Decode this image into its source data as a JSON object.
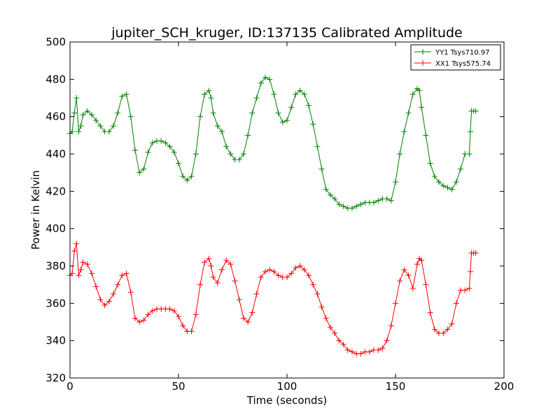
{
  "chart_data": {
    "type": "line",
    "title": "jupiter_SCH_kruger, ID:137135 Calibrated Amplitude",
    "xlabel": "Time (seconds)",
    "ylabel": "Power in Kelvin",
    "xlim": [
      0,
      200
    ],
    "ylim": [
      320,
      500
    ],
    "xticks": [
      0,
      50,
      100,
      150,
      200
    ],
    "yticks": [
      320,
      340,
      360,
      380,
      400,
      420,
      440,
      460,
      480,
      500
    ],
    "x_tick_labels": [
      "0",
      "50",
      "100",
      "150",
      "200"
    ],
    "y_tick_labels": [
      "320",
      "340",
      "360",
      "380",
      "400",
      "420",
      "440",
      "460",
      "480",
      "500"
    ],
    "grid": false,
    "legend_position": "top-right",
    "marker": "plus",
    "series": [
      {
        "name": "YY1 Tsys710.97",
        "color": "#008000",
        "x": [
          0,
          1,
          2,
          3,
          4,
          5,
          6,
          8,
          10,
          12,
          14,
          16,
          18,
          20,
          22,
          24,
          26,
          28,
          30,
          32,
          34,
          36,
          38,
          40,
          42,
          44,
          46,
          48,
          50,
          52,
          54,
          56,
          58,
          60,
          62,
          64,
          65,
          66,
          68,
          70,
          72,
          74,
          76,
          78,
          80,
          82,
          84,
          86,
          88,
          90,
          92,
          94,
          96,
          98,
          100,
          102,
          104,
          106,
          108,
          110,
          112,
          114,
          116,
          118,
          120,
          122,
          124,
          126,
          128,
          130,
          132,
          134,
          136,
          138,
          140,
          142,
          144,
          146,
          148,
          150,
          152,
          154,
          156,
          158,
          160,
          161,
          162,
          164,
          166,
          168,
          170,
          172,
          174,
          176,
          178,
          180,
          182,
          184,
          184.5,
          185,
          186,
          187
        ],
        "y": [
          451,
          452,
          462,
          470,
          452,
          455,
          461,
          463,
          461,
          458,
          455,
          452,
          452,
          455,
          462,
          471,
          472,
          460,
          442,
          430,
          432,
          441,
          446,
          447,
          447,
          446,
          444,
          441,
          435,
          428,
          426,
          428,
          440,
          460,
          472,
          474,
          470,
          462,
          455,
          452,
          444,
          440,
          437,
          437,
          440,
          450,
          462,
          470,
          478,
          481,
          480,
          472,
          462,
          457,
          458,
          465,
          472,
          474,
          472,
          466,
          456,
          444,
          432,
          421,
          418,
          416,
          413,
          412,
          411,
          411,
          412,
          413,
          414,
          414,
          414,
          415,
          416,
          416,
          415,
          425,
          440,
          452,
          462,
          472,
          475,
          474,
          465,
          450,
          435,
          428,
          425,
          423,
          422,
          421,
          425,
          432,
          440,
          440,
          452,
          463,
          463,
          463
        ]
      },
      {
        "name": "XX1 Tsys575.74",
        "color": "#ff0000",
        "x": [
          0,
          1,
          2,
          3,
          4,
          5,
          6,
          8,
          10,
          12,
          14,
          16,
          18,
          20,
          22,
          24,
          26,
          28,
          30,
          32,
          34,
          36,
          38,
          40,
          42,
          44,
          46,
          48,
          50,
          52,
          54,
          56,
          58,
          60,
          62,
          64,
          65,
          66,
          68,
          70,
          72,
          74,
          76,
          78,
          80,
          82,
          84,
          86,
          88,
          90,
          92,
          94,
          96,
          98,
          100,
          102,
          104,
          106,
          108,
          110,
          112,
          114,
          116,
          118,
          120,
          122,
          124,
          126,
          128,
          130,
          132,
          134,
          136,
          138,
          140,
          142,
          144,
          146,
          148,
          150,
          152,
          154,
          156,
          158,
          160,
          161,
          162,
          164,
          166,
          168,
          170,
          172,
          174,
          176,
          178,
          180,
          182,
          184,
          184.5,
          185,
          186,
          187
        ],
        "y": [
          375,
          376,
          388,
          392,
          375,
          378,
          382,
          381,
          376,
          369,
          362,
          359,
          361,
          365,
          370,
          375,
          376,
          366,
          352,
          350,
          351,
          354,
          356,
          357,
          357,
          357,
          357,
          356,
          353,
          348,
          345,
          345,
          354,
          370,
          382,
          384,
          380,
          374,
          371,
          378,
          383,
          381,
          372,
          362,
          352,
          350,
          355,
          365,
          374,
          377,
          378,
          377,
          375,
          374,
          374,
          376,
          379,
          380,
          378,
          375,
          370,
          365,
          358,
          352,
          347,
          344,
          340,
          338,
          335,
          334,
          333,
          333,
          334,
          334,
          335,
          335,
          336,
          340,
          348,
          360,
          372,
          378,
          375,
          368,
          381,
          384,
          383,
          370,
          355,
          346,
          344,
          344,
          346,
          349,
          360,
          367,
          367,
          368,
          377,
          387,
          387,
          387
        ]
      }
    ]
  }
}
